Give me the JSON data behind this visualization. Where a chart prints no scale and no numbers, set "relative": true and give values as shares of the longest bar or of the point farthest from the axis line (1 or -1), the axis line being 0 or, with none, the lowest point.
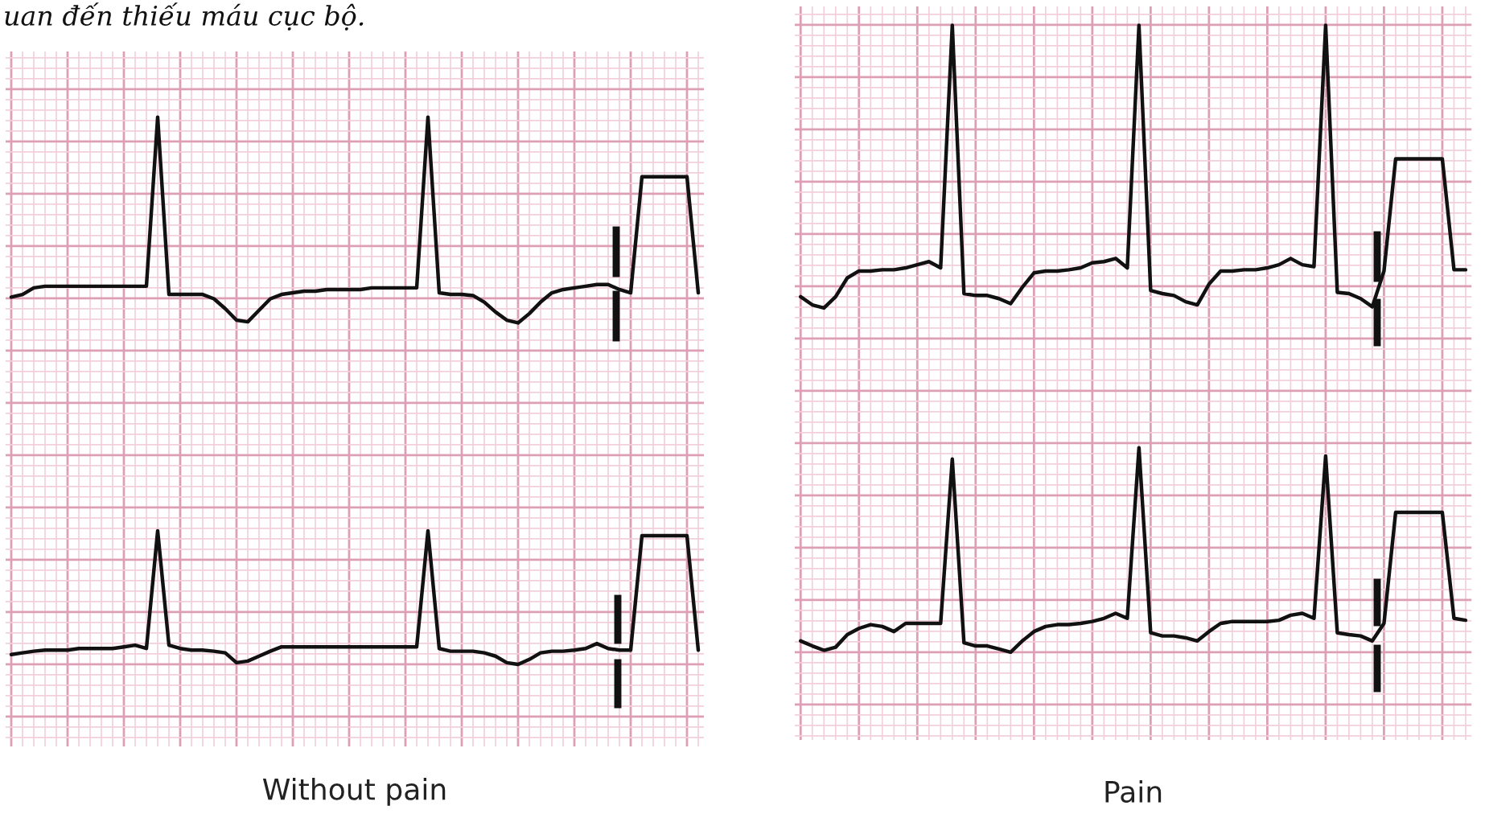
{
  "chart_data": [
    {
      "type": "line",
      "relative": true,
      "grid": true,
      "xlabel": "Without pain",
      "annotations": [
        "uan đến thiếu máu cục bộ."
      ],
      "categories": [
        null,
        null,
        null,
        null,
        null,
        null,
        null,
        null,
        null,
        null,
        null,
        null,
        null,
        null,
        null,
        null,
        null,
        null,
        null,
        null,
        null,
        null,
        null,
        null,
        null,
        null,
        null,
        null,
        null,
        null,
        null,
        null,
        null,
        null,
        null,
        null,
        null,
        null,
        null,
        null,
        null,
        null,
        null,
        null,
        null,
        null,
        null,
        null,
        null,
        null,
        null,
        null,
        null,
        null,
        null,
        null,
        null,
        null,
        null,
        null,
        null,
        null
      ],
      "series": [
        {
          "color": "#111111",
          "values": [
            0.671,
            0.676,
            0.688,
            0.691,
            0.691,
            0.691,
            0.691,
            0.691,
            0.691,
            0.691,
            0.691,
            0.691,
            0.691,
            1.0,
            0.676,
            0.676,
            0.676,
            0.676,
            0.668,
            0.65,
            0.629,
            0.626,
            0.647,
            0.668,
            0.676,
            0.679,
            0.682,
            0.682,
            0.685,
            0.685,
            0.685,
            0.685,
            0.688,
            0.688,
            0.688,
            0.688,
            0.688,
            1.0,
            0.679,
            0.676,
            0.676,
            0.674,
            0.662,
            0.644,
            0.629,
            0.624,
            0.641,
            0.662,
            0.679,
            0.685,
            0.688,
            0.691,
            0.694,
            0.694,
            0.685,
            0.679,
            0.891,
            0.891,
            0.891,
            0.891,
            0.891,
            0.679
          ]
        },
        {
          "color": "#111111",
          "values": [
            0.018,
            0.021,
            0.024,
            0.026,
            0.026,
            0.026,
            0.029,
            0.029,
            0.029,
            0.029,
            0.032,
            0.035,
            0.029,
            0.244,
            0.035,
            0.029,
            0.026,
            0.026,
            0.024,
            0.021,
            0.003,
            0.006,
            0.015,
            0.024,
            0.032,
            0.032,
            0.032,
            0.032,
            0.032,
            0.032,
            0.032,
            0.032,
            0.032,
            0.032,
            0.032,
            0.032,
            0.032,
            0.244,
            0.029,
            0.024,
            0.024,
            0.024,
            0.021,
            0.015,
            0.003,
            0,
            0.009,
            0.021,
            0.024,
            0.024,
            0.026,
            0.029,
            0.038,
            0.029,
            0.026,
            0.026,
            0.235,
            0.235,
            0.235,
            0.235,
            0.235,
            0.026
          ]
        }
      ]
    },
    {
      "type": "line",
      "relative": true,
      "grid": true,
      "xlabel": "Pain",
      "categories": [
        null,
        null,
        null,
        null,
        null,
        null,
        null,
        null,
        null,
        null,
        null,
        null,
        null,
        null,
        null,
        null,
        null,
        null,
        null,
        null,
        null,
        null,
        null,
        null,
        null,
        null,
        null,
        null,
        null,
        null,
        null,
        null,
        null,
        null,
        null,
        null,
        null,
        null,
        null,
        null,
        null,
        null,
        null,
        null,
        null,
        null,
        null,
        null,
        null,
        null,
        null,
        null,
        null,
        null,
        null,
        null,
        null,
        null
      ],
      "series": [
        {
          "color": "#111111",
          "values": [
            0.567,
            0.554,
            0.549,
            0.567,
            0.597,
            0.608,
            0.608,
            0.61,
            0.61,
            0.613,
            0.618,
            0.623,
            0.613,
            1.0,
            0.572,
            0.569,
            0.569,
            0.564,
            0.556,
            0.582,
            0.605,
            0.608,
            0.608,
            0.61,
            0.613,
            0.621,
            0.623,
            0.628,
            0.613,
            1.0,
            0.577,
            0.572,
            0.569,
            0.559,
            0.554,
            0.587,
            0.608,
            0.608,
            0.61,
            0.61,
            0.613,
            0.618,
            0.628,
            0.618,
            0.615,
            1.0,
            0.574,
            0.572,
            0.564,
            0.551,
            0.608,
            0.787,
            0.787,
            0.787,
            0.787,
            0.787,
            0.61,
            0.61
          ]
        },
        {
          "color": "#111111",
          "values": [
            0.018,
            0.01,
            0.003,
            0.008,
            0.028,
            0.038,
            0.044,
            0.041,
            0.033,
            0.046,
            0.046,
            0.046,
            0.046,
            0.308,
            0.015,
            0.01,
            0.01,
            0.005,
            0,
            0.018,
            0.033,
            0.041,
            0.044,
            0.044,
            0.046,
            0.049,
            0.054,
            0.062,
            0.054,
            0.326,
            0.031,
            0.026,
            0.026,
            0.023,
            0.018,
            0.033,
            0.046,
            0.049,
            0.049,
            0.049,
            0.049,
            0.051,
            0.059,
            0.062,
            0.054,
            0.313,
            0.031,
            0.028,
            0.026,
            0.018,
            0.046,
            0.223,
            0.223,
            0.223,
            0.223,
            0.223,
            0.054,
            0.051
          ]
        }
      ]
    }
  ]
}
